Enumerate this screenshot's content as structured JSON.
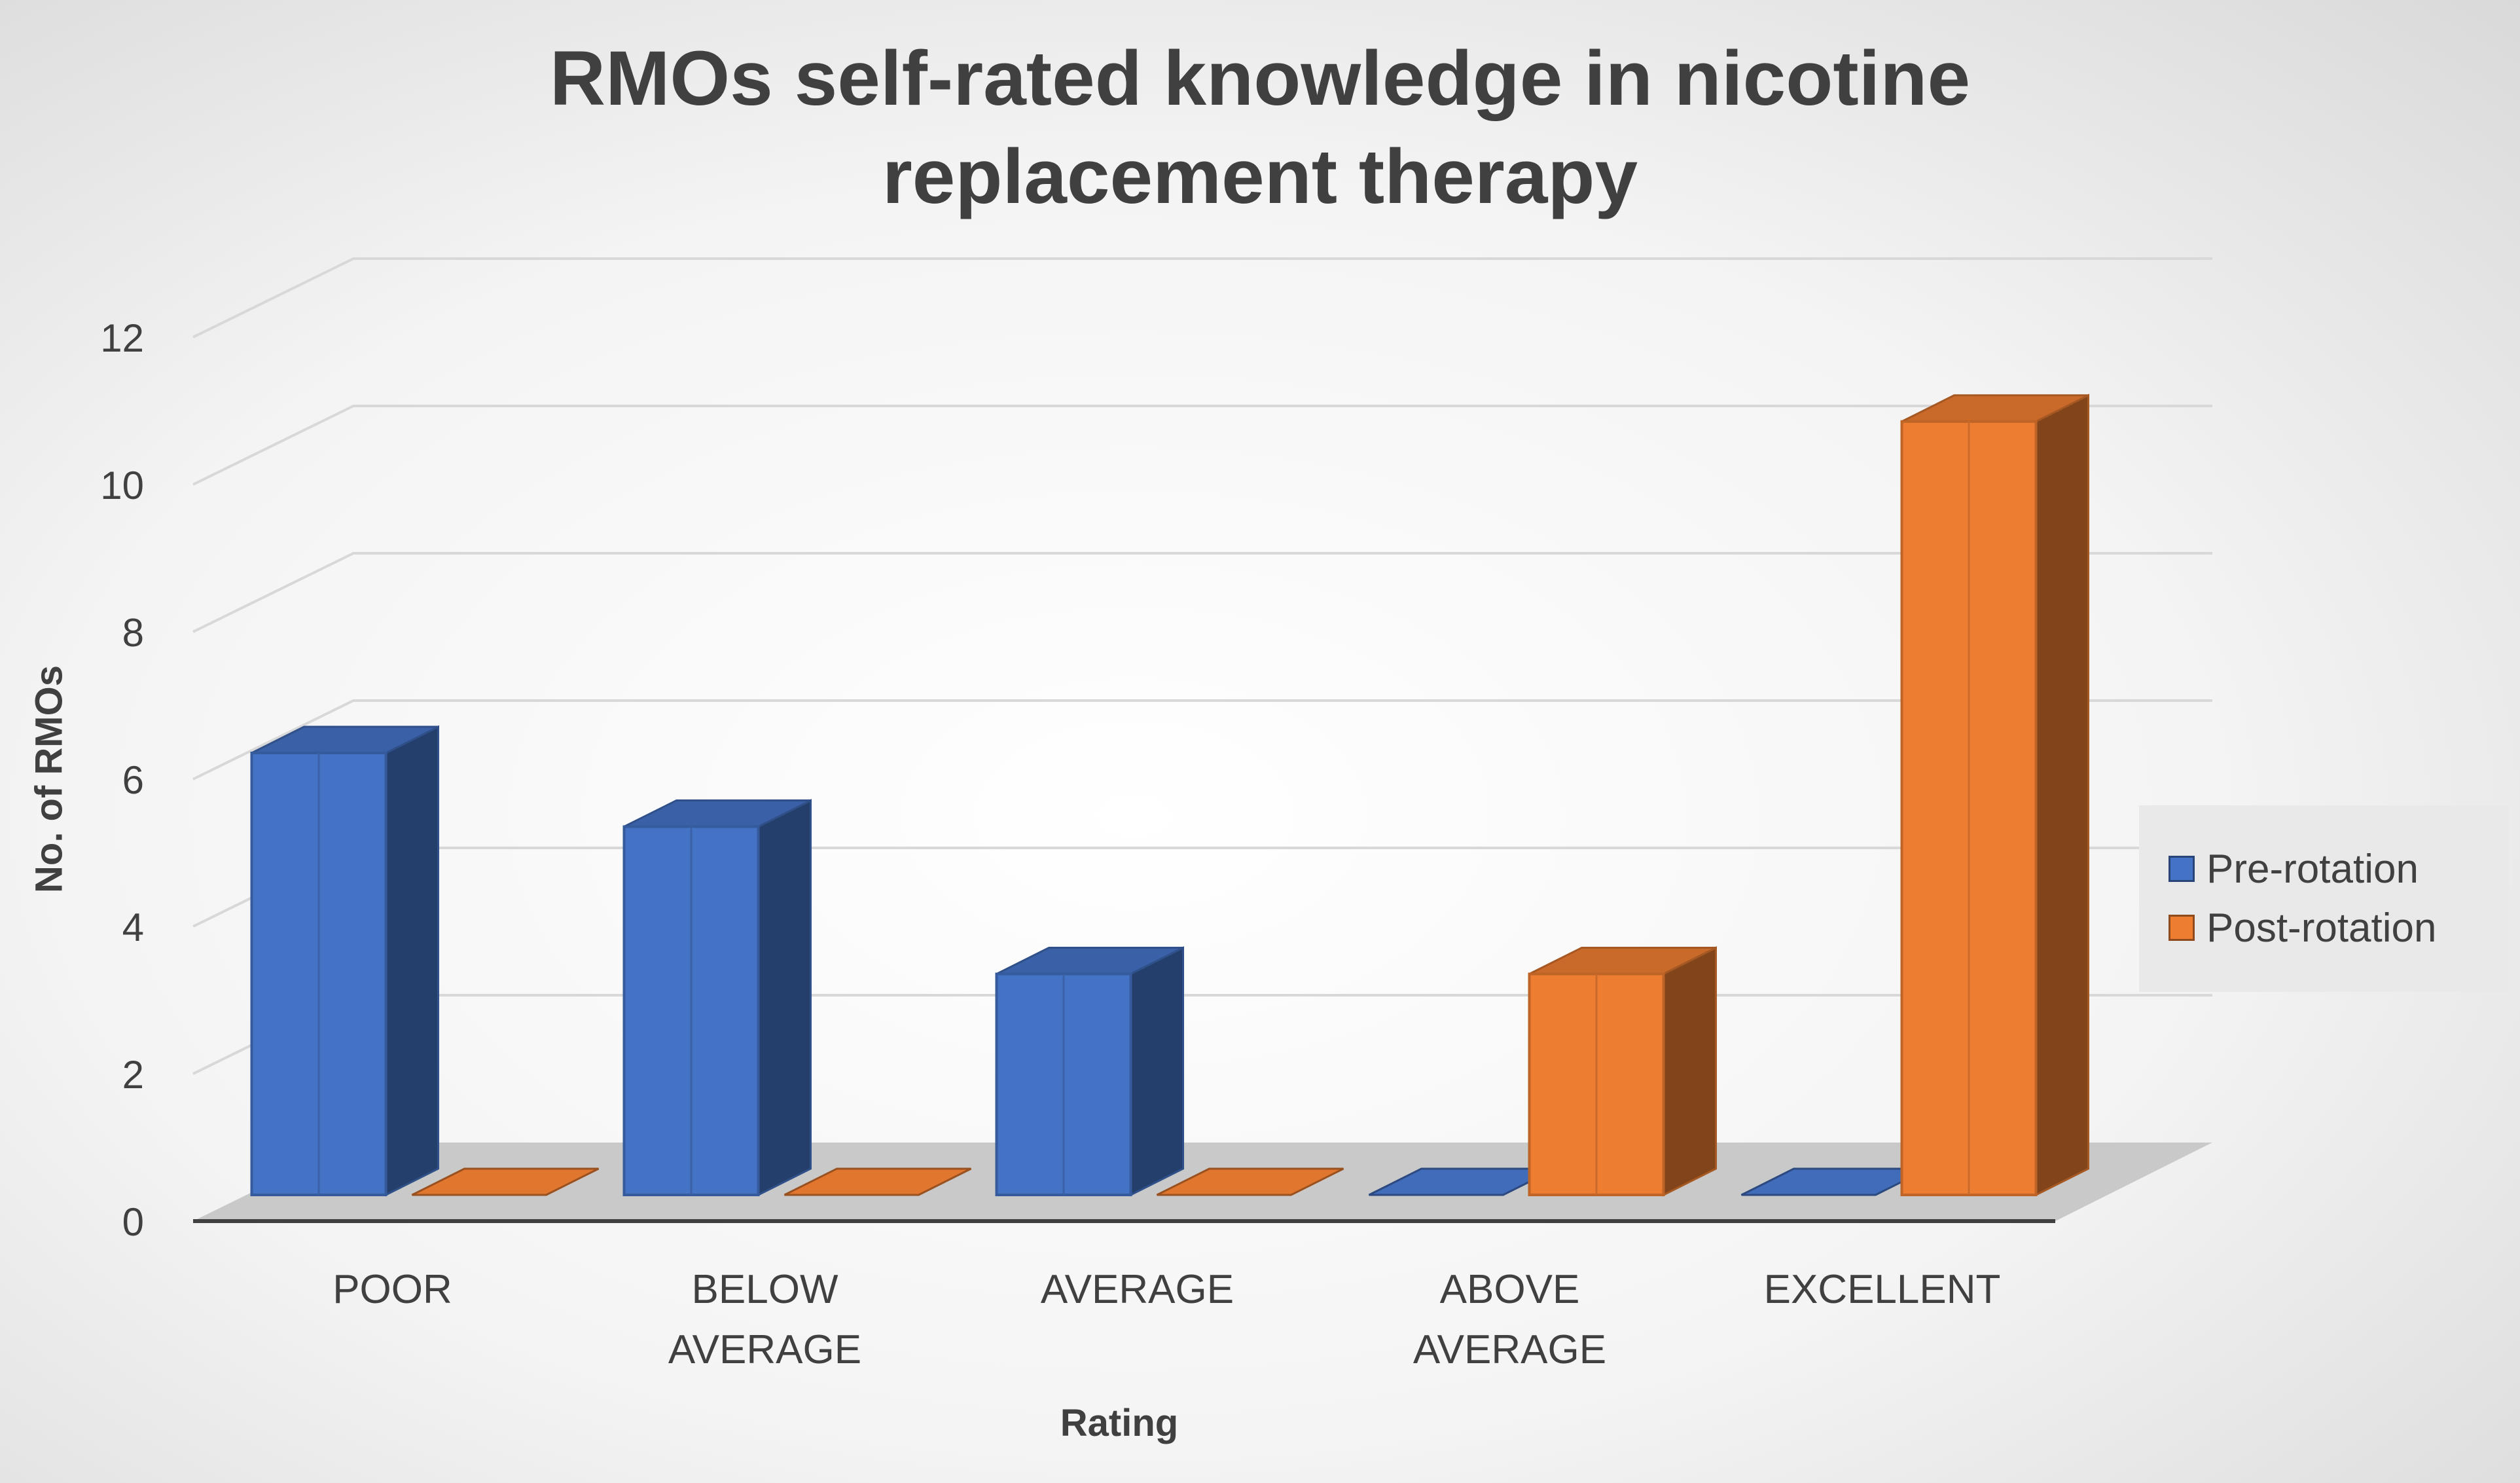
{
  "chart_data": {
    "type": "bar",
    "title": "RMOs self-rated knowledge in nicotine\nreplacement therapy",
    "xlabel": "Rating",
    "ylabel": "No. of RMOs",
    "categories": [
      "POOR",
      "BELOW\nAVERAGE",
      "AVERAGE",
      "ABOVE\nAVERAGE",
      "EXCELLENT"
    ],
    "series": [
      {
        "name": "Pre-rotation",
        "values": [
          6,
          5,
          3,
          0,
          0
        ],
        "color": "#4472c4"
      },
      {
        "name": "Post-rotation",
        "values": [
          0,
          0,
          0,
          3,
          10.5
        ],
        "color": "#ed7d31"
      }
    ],
    "ylim": [
      0,
      12
    ],
    "yticks": [
      0,
      2,
      4,
      6,
      8,
      10,
      12
    ],
    "grid": true,
    "legend": "right",
    "style": "3d-column"
  }
}
